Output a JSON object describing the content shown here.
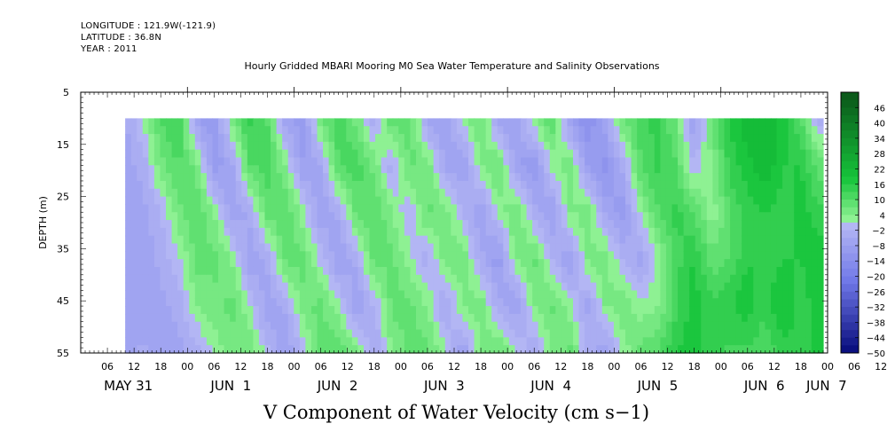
{
  "header": {
    "longitude": "LONGITUDE : 121.9W(-121.9)",
    "latitude": "LATITUDE : 36.8N",
    "year": "YEAR : 2011"
  },
  "chart_data": {
    "type": "heatmap",
    "title": "Hourly Gridded MBARI Mooring M0 Sea Water Temperature and Salinity Observations",
    "xlabel": "V Component of Water Velocity (cm s−1)",
    "ylabel": "DEPTH (m)",
    "ylim": [
      5,
      55
    ],
    "y_reversed": true,
    "y_ticks": [
      5,
      15,
      25,
      35,
      45,
      55
    ],
    "data_depth_range": [
      10,
      55
    ],
    "x_tick_hours": [
      "06",
      "12",
      "18",
      "00",
      "06",
      "12",
      "18",
      "00",
      "06",
      "12",
      "18",
      "00",
      "06",
      "12",
      "18",
      "00",
      "06",
      "12",
      "18",
      "00",
      "06",
      "12",
      "18",
      "00",
      "06",
      "12",
      "18",
      "00",
      "06",
      "12",
      "18",
      "00"
    ],
    "x_day_labels": [
      "MAY 31",
      "JUN  1",
      "JUN  2",
      "JUN  3",
      "JUN  4",
      "JUN  5",
      "JUN  6",
      "JUN  7"
    ],
    "x_hour_range": [
      0,
      168
    ],
    "data_hour_range": [
      10,
      167
    ],
    "colorbar_levels": [
      46,
      40,
      34,
      28,
      22,
      16,
      10,
      4,
      -2,
      -8,
      -14,
      -20,
      -26,
      -32,
      -38,
      -44,
      -50
    ],
    "colorbar_range": [
      -50,
      52
    ],
    "colors": {
      "positive_dark": "#0b5a1a",
      "positive_mid": "#16c43a",
      "positive_light": "#9af59c",
      "negative_light": "#b8baf5",
      "negative_mid": "#7078e8",
      "negative_dark": "#050a7a"
    },
    "columns": [
      {
        "hour": 10,
        "v": [
          -6,
          -6,
          -8,
          -8,
          -8,
          -6
        ]
      },
      {
        "hour": 14,
        "v": [
          2,
          -4,
          -6,
          -8,
          -8,
          -4
        ]
      },
      {
        "hour": 18,
        "v": [
          10,
          6,
          -2,
          -4,
          -6,
          -6
        ]
      },
      {
        "hour": 22,
        "v": [
          14,
          10,
          6,
          0,
          -4,
          -6
        ]
      },
      {
        "hour": 26,
        "v": [
          -8,
          6,
          10,
          8,
          4,
          -4
        ]
      },
      {
        "hour": 30,
        "v": [
          -10,
          -10,
          4,
          8,
          6,
          2
        ]
      },
      {
        "hour": 34,
        "v": [
          6,
          -6,
          -8,
          4,
          8,
          6
        ]
      },
      {
        "hour": 38,
        "v": [
          14,
          10,
          -4,
          -8,
          2,
          6
        ]
      },
      {
        "hour": 42,
        "v": [
          10,
          12,
          8,
          -4,
          -8,
          0
        ]
      },
      {
        "hour": 46,
        "v": [
          -8,
          4,
          10,
          8,
          -4,
          -8
        ]
      },
      {
        "hour": 50,
        "v": [
          -10,
          -8,
          2,
          8,
          6,
          -2
        ]
      },
      {
        "hour": 54,
        "v": [
          8,
          -6,
          -8,
          0,
          8,
          8
        ]
      },
      {
        "hour": 58,
        "v": [
          12,
          10,
          -4,
          -8,
          2,
          10
        ]
      },
      {
        "hour": 62,
        "v": [
          6,
          12,
          8,
          -4,
          -8,
          6
        ]
      },
      {
        "hour": 66,
        "v": [
          -4,
          6,
          10,
          8,
          -2,
          -6
        ]
      },
      {
        "hour": 70,
        "v": [
          10,
          -4,
          4,
          8,
          8,
          4
        ]
      },
      {
        "hour": 74,
        "v": [
          8,
          8,
          -2,
          2,
          8,
          8
        ]
      },
      {
        "hour": 78,
        "v": [
          -6,
          6,
          8,
          -4,
          4,
          8
        ]
      },
      {
        "hour": 82,
        "v": [
          -8,
          -6,
          6,
          6,
          -6,
          2
        ]
      },
      {
        "hour": 86,
        "v": [
          2,
          -8,
          -2,
          6,
          4,
          -8
        ]
      },
      {
        "hour": 90,
        "v": [
          8,
          4,
          -8,
          -4,
          6,
          4
        ]
      },
      {
        "hour": 94,
        "v": [
          -8,
          8,
          2,
          -10,
          -4,
          8
        ]
      },
      {
        "hour": 98,
        "v": [
          -6,
          -8,
          8,
          4,
          -8,
          2
        ]
      },
      {
        "hour": 102,
        "v": [
          4,
          -10,
          -4,
          8,
          4,
          -6
        ]
      },
      {
        "hour": 106,
        "v": [
          10,
          2,
          -8,
          -2,
          8,
          4
        ]
      },
      {
        "hour": 110,
        "v": [
          -8,
          6,
          4,
          -8,
          2,
          8
        ]
      },
      {
        "hour": 114,
        "v": [
          -14,
          -8,
          6,
          4,
          -6,
          -2
        ]
      },
      {
        "hour": 118,
        "v": [
          -6,
          -12,
          -6,
          6,
          4,
          -8
        ]
      },
      {
        "hour": 122,
        "v": [
          8,
          -4,
          -10,
          -2,
          6,
          2
        ]
      },
      {
        "hour": 126,
        "v": [
          12,
          10,
          2,
          -6,
          2,
          8
        ]
      },
      {
        "hour": 130,
        "v": [
          14,
          14,
          10,
          2,
          4,
          10
        ]
      },
      {
        "hour": 134,
        "v": [
          6,
          10,
          14,
          12,
          12,
          16
        ]
      },
      {
        "hour": 138,
        "v": [
          -8,
          -2,
          10,
          16,
          18,
          18
        ]
      },
      {
        "hour": 142,
        "v": [
          8,
          4,
          2,
          8,
          14,
          14
        ]
      },
      {
        "hour": 146,
        "v": [
          16,
          14,
          10,
          10,
          16,
          12
        ]
      },
      {
        "hour": 150,
        "v": [
          22,
          18,
          14,
          16,
          18,
          12
        ]
      },
      {
        "hour": 154,
        "v": [
          22,
          22,
          16,
          14,
          14,
          10
        ]
      },
      {
        "hour": 158,
        "v": [
          18,
          16,
          14,
          16,
          20,
          14
        ]
      },
      {
        "hour": 162,
        "v": [
          10,
          16,
          18,
          16,
          14,
          16
        ]
      },
      {
        "hour": 166,
        "v": [
          -4,
          8,
          14,
          18,
          18,
          16
        ]
      }
    ]
  }
}
